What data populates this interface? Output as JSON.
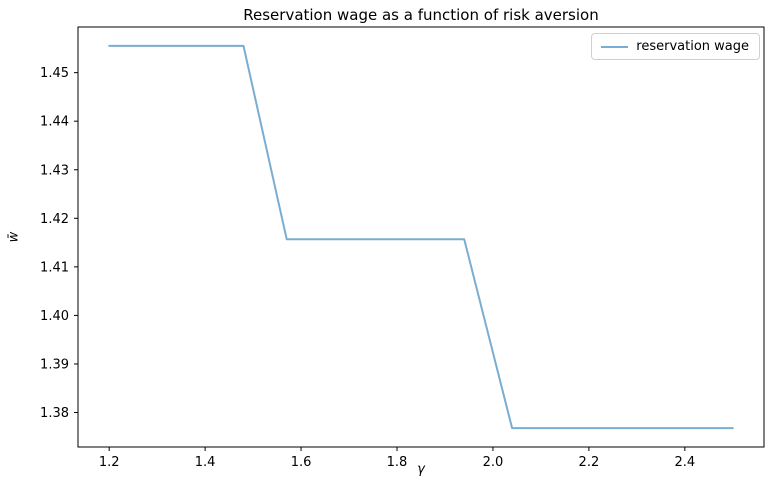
{
  "chart_data": {
    "type": "line",
    "title": "Reservation wage as a function of risk aversion",
    "xlabel": "γ",
    "ylabel": "w̄",
    "x": [
      1.2,
      1.48,
      1.57,
      1.94,
      2.04,
      2.5
    ],
    "y": [
      1.4555,
      1.4555,
      1.4157,
      1.4157,
      1.3768,
      1.3768
    ],
    "xlim": [
      1.135,
      2.565
    ],
    "ylim": [
      1.3729,
      1.4594
    ],
    "xticks": [
      1.2,
      1.4,
      1.6,
      1.8,
      2.0,
      2.2,
      2.4
    ],
    "xtick_labels": [
      "1.2",
      "1.4",
      "1.6",
      "1.8",
      "2.0",
      "2.2",
      "2.4"
    ],
    "yticks": [
      1.38,
      1.39,
      1.4,
      1.41,
      1.42,
      1.43,
      1.44,
      1.45
    ],
    "ytick_labels": [
      "1.38",
      "1.39",
      "1.40",
      "1.41",
      "1.42",
      "1.43",
      "1.44",
      "1.45"
    ],
    "grid": false,
    "background": "#ffffff",
    "line_color": "#79add2",
    "line_width": 2,
    "spine_color": "#000000",
    "legend": {
      "label": "reservation wage",
      "position": "upper right"
    }
  }
}
